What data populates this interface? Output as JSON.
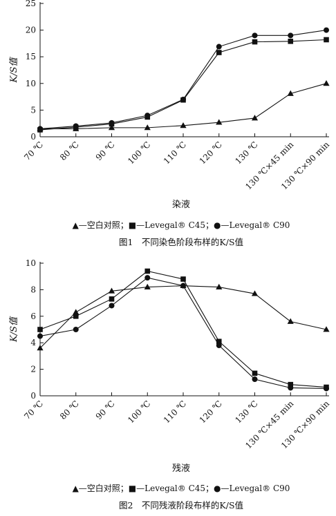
{
  "chart_data": [
    {
      "type": "line",
      "title": "",
      "ylabel": "K/S值",
      "xlabel": "染液",
      "ylim": [
        0,
        25
      ],
      "yticks": [
        0,
        5,
        10,
        15,
        20,
        25
      ],
      "categories": [
        "70 ℃",
        "80 ℃",
        "90 ℃",
        "100 ℃",
        "110 ℃",
        "120 ℃",
        "130 ℃",
        "130 ℃×45 min",
        "130 ℃×90 min"
      ],
      "series": [
        {
          "name": "—空白对照",
          "marker": "triangle",
          "values": [
            1.5,
            1.5,
            1.7,
            1.7,
            2.1,
            2.7,
            3.5,
            8.1,
            10.0
          ]
        },
        {
          "name": "—Levegal® C45",
          "marker": "square",
          "values": [
            1.3,
            1.8,
            2.4,
            3.7,
            6.9,
            15.8,
            17.8,
            17.9,
            18.2
          ]
        },
        {
          "name": "—Levegal® C90",
          "marker": "circle",
          "values": [
            1.5,
            2.0,
            2.6,
            4.0,
            7.0,
            16.9,
            19.0,
            19.0,
            20.0
          ]
        }
      ],
      "legend_text": "▲—空白对照；■—Levegal® C45；●—Levegal® C90",
      "caption": "图1　不同染色阶段布样的K/S值"
    },
    {
      "type": "line",
      "title": "",
      "ylabel": "K/S值",
      "xlabel": "残液",
      "ylim": [
        0,
        10
      ],
      "yticks": [
        0,
        2,
        4,
        6,
        8,
        10
      ],
      "categories": [
        "70 ℃",
        "80 ℃",
        "90 ℃",
        "100 ℃",
        "110 ℃",
        "120 ℃",
        "130 ℃",
        "130 ℃×45 min",
        "130 ℃×90 min"
      ],
      "series": [
        {
          "name": "—空白对照",
          "marker": "triangle",
          "values": [
            3.6,
            6.3,
            7.9,
            8.2,
            8.3,
            8.2,
            7.7,
            5.6,
            5.0
          ]
        },
        {
          "name": "—Levegal® C45",
          "marker": "square",
          "values": [
            5.0,
            6.0,
            7.3,
            9.4,
            8.8,
            4.1,
            1.7,
            0.85,
            0.65
          ]
        },
        {
          "name": "—Levegal® C90",
          "marker": "circle",
          "values": [
            4.5,
            5.0,
            6.8,
            8.9,
            8.3,
            3.8,
            1.25,
            0.6,
            0.55
          ]
        }
      ],
      "legend_text": "▲—空白对照；■—Levegal® C45；●—Levegal® C90",
      "caption": "图2　不同残液阶段布样的K/S值"
    }
  ]
}
